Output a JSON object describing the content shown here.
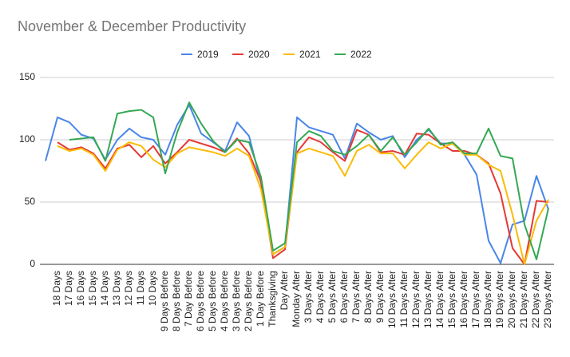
{
  "chart_data": {
    "type": "line",
    "title": "November & December Productivity",
    "categories": [
      null,
      "18 Days",
      "17 Days",
      "16 Days",
      "15 Days",
      "14 Days",
      "13 Days",
      "12 Days",
      "11 Days",
      "10 Days",
      "9 Days Before",
      "8 Days Before",
      "7 Day Before",
      "6 Days Before",
      "5 Days Before",
      "4 Days Before",
      "3 Days Before",
      "2 Days Before",
      "1 Day Before",
      "Thanksgiving",
      "Day After",
      "Monday After",
      "3 Days After",
      "4 Days After",
      "5 Days After",
      "6 Days After",
      "7 Days After",
      "8 Days After",
      "9 Days After",
      "10 Days After",
      "11 Days After",
      "12 Days After",
      "13 Days After",
      "14 Days After",
      "15 Days After",
      "16 Days After",
      "17 Days After",
      "18 Days After",
      "19 Days After",
      "20 Days After",
      "21 Days After",
      "22 Days After",
      "23 Days After"
    ],
    "series": [
      {
        "name": "2019",
        "color": "#4a86e8",
        "values": [
          83,
          118,
          114,
          104,
          101,
          84,
          100,
          109,
          102,
          100,
          88,
          112,
          128,
          105,
          98,
          91,
          114,
          103,
          65,
          8,
          14,
          118,
          110,
          107,
          104,
          85,
          113,
          106,
          100,
          103,
          86,
          100,
          108,
          97,
          97,
          88,
          72,
          19,
          1,
          32,
          35,
          71,
          44
        ]
      },
      {
        "name": "2020",
        "color": "#e53935",
        "values": [
          null,
          98,
          92,
          94,
          89,
          77,
          93,
          96,
          86,
          95,
          81,
          90,
          100,
          97,
          94,
          90,
          101,
          89,
          66,
          5,
          12,
          90,
          102,
          98,
          90,
          83,
          108,
          104,
          90,
          91,
          88,
          105,
          104,
          97,
          91,
          91,
          88,
          81,
          57,
          13,
          0,
          51,
          50
        ]
      },
      {
        "name": "2021",
        "color": "#f9bc05",
        "values": [
          null,
          95,
          91,
          93,
          88,
          75,
          92,
          98,
          95,
          84,
          78,
          89,
          94,
          92,
          90,
          87,
          93,
          87,
          60,
          8,
          14,
          89,
          93,
          90,
          87,
          71,
          91,
          96,
          89,
          89,
          77,
          88,
          98,
          93,
          97,
          88,
          88,
          80,
          75,
          40,
          0,
          35,
          52
        ]
      },
      {
        "name": "2022",
        "color": "#34a853",
        "values": [
          null,
          null,
          100,
          101,
          102,
          83,
          121,
          123,
          124,
          118,
          73,
          106,
          130,
          113,
          99,
          90,
          100,
          98,
          70,
          11,
          17,
          98,
          107,
          103,
          91,
          88,
          95,
          104,
          91,
          102,
          88,
          98,
          109,
          96,
          98,
          89,
          89,
          109,
          87,
          85,
          32,
          4,
          45
        ]
      }
    ],
    "ylim": [
      0,
      150
    ],
    "yticks": [
      0,
      50,
      100,
      150
    ],
    "grid": true,
    "legend": "top"
  }
}
